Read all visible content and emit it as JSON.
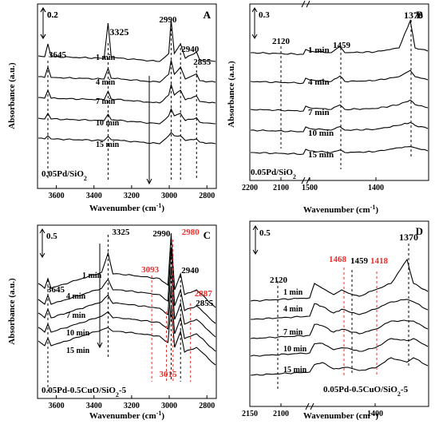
{
  "chart_data": [
    {
      "panel": "A",
      "type": "line",
      "sample": "0.05Pd/SiO2",
      "xlabel": "Wavenumber (cm",
      "xlabel_sup": "-1",
      "ylabel": "Absorbance (a.u.)",
      "xlim": [
        3700,
        2750
      ],
      "x_ticks": [
        "3600",
        "3400",
        "3200",
        "3000",
        "2800"
      ],
      "scale_bar": "0.2",
      "series": [
        {
          "name": "1 min"
        },
        {
          "name": "4 min"
        },
        {
          "name": "7 min"
        },
        {
          "name": "10 min"
        },
        {
          "name": "15 min"
        }
      ],
      "peaks": [
        "3645",
        "3325",
        "2990",
        "2940",
        "2855"
      ]
    },
    {
      "panel": "B",
      "type": "line",
      "sample": "0.05Pd/SiO2",
      "xlabel": "Wavenumber (cm",
      "xlabel_sup": "-1",
      "x_ticks": [
        "2200",
        "2100",
        "1500",
        "1400"
      ],
      "scale_bar": "0.3",
      "series": [
        {
          "name": "1 min"
        },
        {
          "name": "4 min"
        },
        {
          "name": "7 min"
        },
        {
          "name": "10 min"
        },
        {
          "name": "15 min"
        }
      ],
      "peaks": [
        "2120",
        "1459",
        "1370"
      ]
    },
    {
      "panel": "C",
      "type": "line",
      "sample": "0.05Pd-0.5CuO/SiO2-5",
      "xlabel": "Wavenumber (cm",
      "xlabel_sup": "-1",
      "ylabel": "Absorbance (a.u.)",
      "xlim": [
        3700,
        2750
      ],
      "x_ticks": [
        "3600",
        "3400",
        "3200",
        "3000",
        "2800"
      ],
      "scale_bar": "0.5",
      "series": [
        {
          "name": "1 min"
        },
        {
          "name": "4 min"
        },
        {
          "name": "7 min"
        },
        {
          "name": "10 min"
        },
        {
          "name": "15 min"
        }
      ],
      "peaks": [
        "3645",
        "3325",
        "2990",
        "2940",
        "2855"
      ],
      "peaks_red": [
        "2980",
        "3093",
        "2887",
        "3015"
      ]
    },
    {
      "panel": "D",
      "type": "line",
      "sample": "0.05Pd-0.5CuO/SiO2-5",
      "xlabel": "Wavenumber (cm",
      "xlabel_sup": "-1",
      "x_ticks": [
        "2150",
        "2100",
        "1400"
      ],
      "scale_bar": "0.5",
      "series": [
        {
          "name": "1 min"
        },
        {
          "name": "4 min"
        },
        {
          "name": "7 min"
        },
        {
          "name": "10 min"
        },
        {
          "name": "15 min"
        }
      ],
      "peaks": [
        "2120",
        "1459",
        "1370"
      ],
      "peaks_red": [
        "1468",
        "1418"
      ]
    }
  ]
}
